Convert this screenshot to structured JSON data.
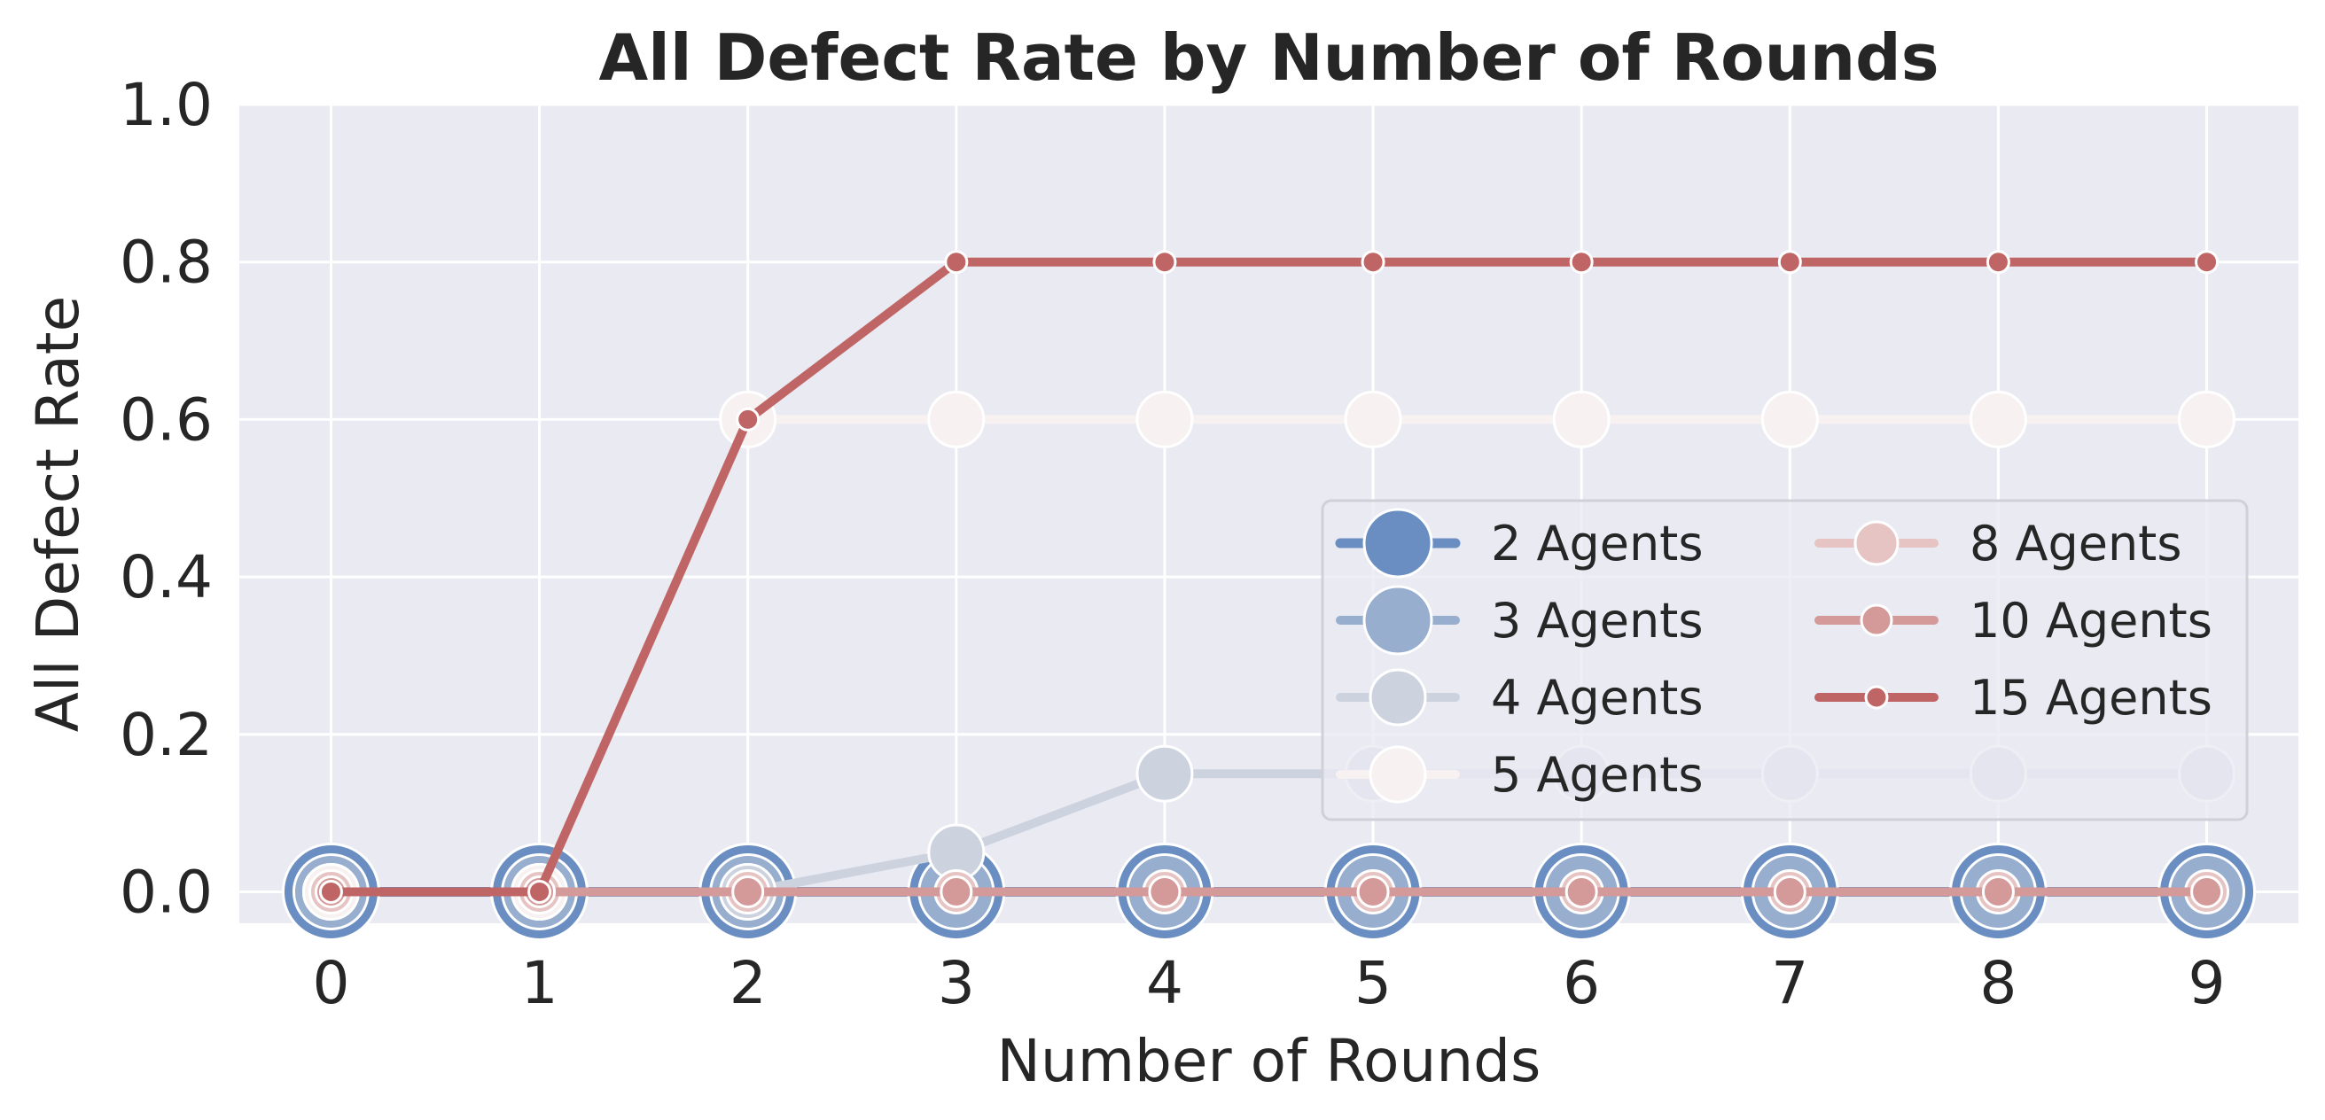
{
  "chart_data": {
    "type": "line",
    "title": "All Defect Rate by Number of Rounds",
    "xlabel": "Number of Rounds",
    "ylabel": "All Defect Rate",
    "x": [
      0,
      1,
      2,
      3,
      4,
      5,
      6,
      7,
      8,
      9
    ],
    "xlim": [
      -0.44,
      9.44
    ],
    "ylim": [
      -0.04,
      1.0
    ],
    "yticks": [
      "0.0",
      "0.2",
      "0.4",
      "0.6",
      "0.8",
      "1.0"
    ],
    "yticks_values": [
      0.0,
      0.2,
      0.4,
      0.6,
      0.8,
      1.0
    ],
    "grid": true,
    "background": "#eaeaf2",
    "legend": {
      "placement": "center-right",
      "columns": 2
    },
    "series": [
      {
        "name": "2 Agents",
        "color": "#6a8ec2",
        "values": [
          0,
          0,
          0,
          0,
          0,
          0,
          0,
          0,
          0,
          0
        ]
      },
      {
        "name": "3 Agents",
        "color": "#98aecf",
        "values": [
          0,
          0,
          0,
          0,
          0,
          0,
          0,
          0,
          0,
          0
        ]
      },
      {
        "name": "4 Agents",
        "color": "#cdd2df",
        "values": [
          0,
          0,
          0,
          0.05,
          0.15,
          0.15,
          0.15,
          0.15,
          0.15,
          0.15
        ]
      },
      {
        "name": "5 Agents",
        "color": "#f7f1f1",
        "values": [
          0,
          0,
          0.6,
          0.6,
          0.6,
          0.6,
          0.6,
          0.6,
          0.6,
          0.6
        ]
      },
      {
        "name": "8 Agents",
        "color": "#e7c4c4",
        "values": [
          0,
          0,
          0,
          0,
          0,
          0,
          0,
          0,
          0,
          0
        ]
      },
      {
        "name": "10 Agents",
        "color": "#d49a99",
        "values": [
          0,
          0,
          0,
          0,
          0,
          0,
          0,
          0,
          0,
          0
        ]
      },
      {
        "name": "15 Agents",
        "color": "#c06565",
        "values": [
          0,
          0,
          0.6,
          0.8,
          0.8,
          0.8,
          0.8,
          0.8,
          0.8,
          0.8
        ]
      }
    ]
  }
}
